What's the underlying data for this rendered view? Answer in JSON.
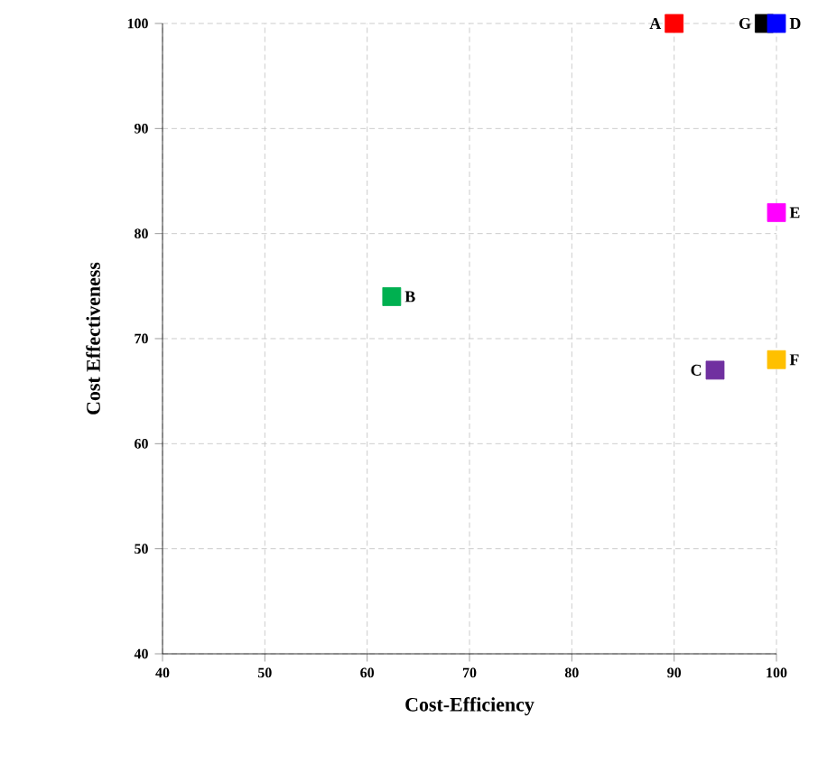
{
  "chart_data": {
    "type": "scatter",
    "xlabel": "Cost-Efficiency",
    "ylabel": "Cost Effectiveness",
    "xlim": [
      40,
      100
    ],
    "ylim": [
      40,
      100
    ],
    "xticks": [
      40,
      50,
      60,
      70,
      80,
      90,
      100
    ],
    "yticks": [
      40,
      50,
      60,
      70,
      80,
      90,
      100
    ],
    "grid": true,
    "marker": "square",
    "series": [
      {
        "name": "A",
        "color": "#ff0000",
        "x": [
          90
        ],
        "values": [
          100
        ]
      },
      {
        "name": "B",
        "color": "#00b050",
        "x": [
          62.4
        ],
        "values": [
          74
        ]
      },
      {
        "name": "C",
        "color": "#7030a0",
        "x": [
          94
        ],
        "values": [
          67
        ]
      },
      {
        "name": "G",
        "color": "#000000",
        "x": [
          98.8
        ],
        "values": [
          100
        ]
      },
      {
        "name": "D",
        "color": "#0000ff",
        "x": [
          100
        ],
        "values": [
          100
        ]
      },
      {
        "name": "E",
        "color": "#ff00ff",
        "x": [
          100
        ],
        "values": [
          82
        ]
      },
      {
        "name": "F",
        "color": "#ffc000",
        "x": [
          100
        ],
        "values": [
          68
        ]
      }
    ]
  }
}
